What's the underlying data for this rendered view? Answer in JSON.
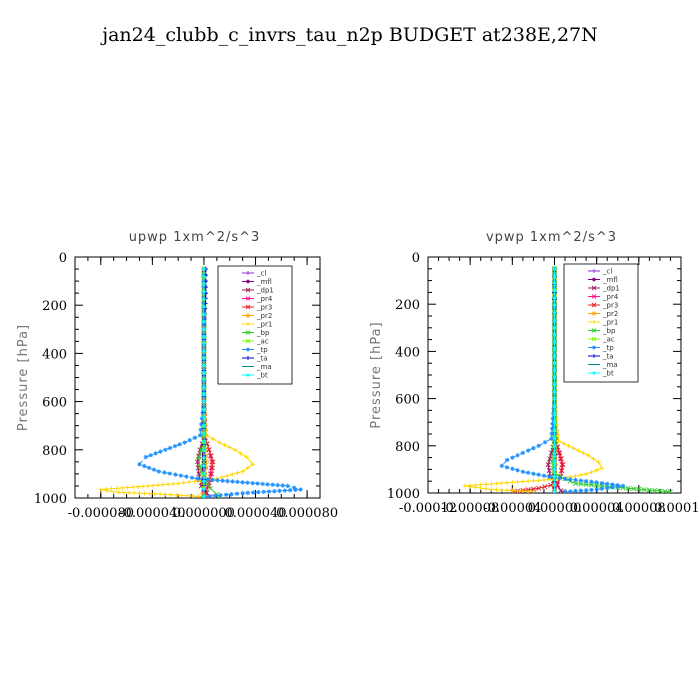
{
  "figure": {
    "title": "jan24_clubb_c_invrs_tau_n2p  BUDGET at238E,27N"
  },
  "legend_entries": [
    "_cl",
    "_mfl",
    "_dp1",
    "_pr4",
    "_pr3",
    "_pr2",
    "_pr1",
    "_bp",
    "_ac",
    "_tp",
    "_ta",
    "_ma",
    "_bt"
  ],
  "colors": {
    "_cl": "#8a2be2",
    "_mfl": "#800080",
    "_dp1": "#a0205a",
    "_pr4": "#ff1493",
    "_pr3": "#e02020",
    "_pr2": "#ffa500",
    "_pr1": "#ffd700",
    "_bp": "#32cd32",
    "_ac": "#7cfc00",
    "_tp": "#1e90ff",
    "_ta": "#0000cd",
    "_ma": "#008b8b",
    "_bt": "#00ffff"
  },
  "chart_data": [
    {
      "type": "line",
      "title": "upwp   1xm^2/s^3",
      "ylabel": "Pressure [hPa]",
      "xlabel": "",
      "xlim": [
        -0.0001,
        9e-05
      ],
      "ylim": [
        1000,
        0
      ],
      "xticks": [
        -8e-05,
        -4e-05,
        0.0,
        4e-05,
        8e-05
      ],
      "xtick_labels": [
        "-0.000080",
        "-0.000040",
        "0.000000",
        "0.000040",
        "0.000080"
      ],
      "yticks": [
        0,
        200,
        400,
        600,
        800,
        1000
      ],
      "ytick_labels": [
        "0",
        "200",
        "400",
        "600",
        "800",
        "1000"
      ],
      "series": [
        {
          "name": "_cl",
          "pressure": [
            50,
            150,
            250,
            350,
            450,
            550,
            650,
            750,
            850,
            950,
            990
          ],
          "values": [
            0,
            0,
            0,
            0,
            0,
            0,
            0,
            0,
            0,
            0,
            0
          ]
        },
        {
          "name": "_mfl",
          "pressure": [
            50,
            150,
            250,
            350,
            450,
            550,
            650,
            750,
            850,
            950,
            990
          ],
          "values": [
            0,
            0,
            0,
            0,
            0,
            0,
            0,
            0,
            0,
            0,
            0
          ]
        },
        {
          "name": "_dp1",
          "pressure": [
            50,
            300,
            600,
            750,
            800,
            850,
            900,
            950,
            980,
            995
          ],
          "values": [
            0,
            0,
            0,
            0,
            -3e-06,
            -5e-06,
            -4e-06,
            -2e-06,
            2e-06,
            5e-06
          ]
        },
        {
          "name": "_pr4",
          "pressure": [
            50,
            300,
            600,
            750,
            800,
            850,
            900,
            950,
            980,
            995
          ],
          "values": [
            0,
            0,
            0,
            1e-06,
            4e-06,
            6e-06,
            5e-06,
            3e-06,
            1e-06,
            0
          ]
        },
        {
          "name": "_pr3",
          "pressure": [
            50,
            300,
            600,
            750,
            800,
            850,
            900,
            950,
            980,
            995
          ],
          "values": [
            0,
            0,
            0,
            1e-06,
            4e-06,
            7e-06,
            6e-06,
            4e-06,
            1e-06,
            0
          ]
        },
        {
          "name": "_pr2",
          "pressure": [
            50,
            300,
            600,
            750,
            800,
            850,
            900,
            950,
            980,
            995
          ],
          "values": [
            0,
            0,
            0,
            0,
            1e-06,
            2e-06,
            1e-06,
            0,
            -1e-06,
            0
          ]
        },
        {
          "name": "_pr1",
          "pressure": [
            50,
            150,
            300,
            600,
            740,
            770,
            800,
            830,
            860,
            890,
            920,
            940,
            955,
            965,
            975,
            985,
            995
          ],
          "values": [
            0,
            0,
            0,
            0,
            2e-06,
            1.2e-05,
            2.4e-05,
            3.3e-05,
            3.8e-05,
            3e-05,
            1e-05,
            -2e-05,
            -5.5e-05,
            -8e-05,
            -7e-05,
            -3e-05,
            0
          ]
        },
        {
          "name": "_bp",
          "pressure": [
            50,
            300,
            600,
            780,
            800,
            830,
            870,
            920,
            960,
            985,
            995
          ],
          "values": [
            0,
            0,
            0,
            0,
            -2e-06,
            -4e-06,
            -3e-06,
            0,
            5e-06,
            1e-05,
            1.2e-05
          ]
        },
        {
          "name": "_ac",
          "pressure": [
            50,
            300,
            600,
            800,
            850,
            900,
            950,
            995
          ],
          "values": [
            0,
            0,
            0,
            0,
            0,
            0,
            0,
            0
          ]
        },
        {
          "name": "_tp",
          "pressure": [
            50,
            150,
            300,
            600,
            740,
            770,
            800,
            830,
            860,
            890,
            920,
            935,
            950,
            965,
            980,
            995
          ],
          "values": [
            0,
            0,
            0,
            0,
            -3e-06,
            -1.5e-05,
            -3e-05,
            -4.5e-05,
            -5e-05,
            -3.5e-05,
            -5e-06,
            3e-05,
            6.5e-05,
            7.5e-05,
            3e-05,
            0
          ]
        },
        {
          "name": "_ta",
          "pressure": [
            50,
            150,
            300,
            600,
            800,
            900,
            995
          ],
          "values": [
            1.5e-06,
            1.5e-06,
            0,
            0,
            0,
            0,
            0
          ]
        },
        {
          "name": "_ma",
          "pressure": [
            50,
            300,
            600,
            800,
            900,
            995
          ],
          "values": [
            0,
            0,
            0,
            0,
            0,
            0
          ]
        },
        {
          "name": "_bt",
          "pressure": [
            50,
            300,
            600,
            800,
            900,
            995
          ],
          "values": [
            0,
            0,
            0,
            0,
            0,
            0
          ]
        }
      ]
    },
    {
      "type": "line",
      "title": "vpwp   1xm^2/s^3",
      "ylabel": "Pressure [hPa]",
      "xlabel": "",
      "xlim": [
        -0.00012,
        0.00012
      ],
      "ylim": [
        1000,
        0
      ],
      "xticks": [
        -0.00012,
        -8e-05,
        -4e-05,
        0.0,
        4e-05,
        8e-05,
        0.00012
      ],
      "xtick_labels": [
        "-0.00012",
        "-0.00008",
        "-0.00004",
        "0.00000",
        "0.00004",
        "0.00008",
        "0.00012"
      ],
      "yticks": [
        0,
        200,
        400,
        600,
        800,
        1000
      ],
      "ytick_labels": [
        "0",
        "200",
        "400",
        "600",
        "800",
        "1000"
      ],
      "series": [
        {
          "name": "_cl",
          "pressure": [
            50,
            150,
            250,
            350,
            450,
            550,
            650,
            750,
            850,
            950,
            990
          ],
          "values": [
            0,
            0,
            0,
            0,
            0,
            0,
            0,
            0,
            0,
            0,
            0
          ]
        },
        {
          "name": "_mfl",
          "pressure": [
            50,
            150,
            250,
            350,
            450,
            550,
            650,
            750,
            850,
            950,
            990
          ],
          "values": [
            0,
            0,
            0,
            0,
            0,
            0,
            0,
            0,
            0,
            0,
            0
          ]
        },
        {
          "name": "_dp1",
          "pressure": [
            50,
            300,
            600,
            780,
            830,
            880,
            930,
            965,
            990,
            1000
          ],
          "values": [
            0,
            0,
            0,
            0,
            -3e-06,
            -6e-06,
            -4e-06,
            2e-06,
            6e-06,
            1e-05
          ]
        },
        {
          "name": "_pr4",
          "pressure": [
            50,
            300,
            600,
            780,
            830,
            880,
            930,
            965,
            990
          ],
          "values": [
            0,
            0,
            0,
            1e-06,
            4e-06,
            7e-06,
            6e-06,
            3e-06,
            0
          ]
        },
        {
          "name": "_pr3",
          "pressure": [
            50,
            300,
            600,
            780,
            830,
            880,
            930,
            960,
            980,
            995
          ],
          "values": [
            0,
            0,
            0,
            1e-06,
            5e-06,
            8e-06,
            6e-06,
            2e-06,
            -1.5e-05,
            -4e-05
          ]
        },
        {
          "name": "_pr2",
          "pressure": [
            50,
            300,
            600,
            800,
            880,
            940,
            990
          ],
          "values": [
            0,
            0,
            0,
            0,
            1e-06,
            0,
            0
          ]
        },
        {
          "name": "_pr1",
          "pressure": [
            50,
            150,
            300,
            600,
            780,
            810,
            840,
            870,
            895,
            920,
            940,
            955,
            970,
            985,
            995
          ],
          "values": [
            0,
            0,
            0,
            0,
            4e-06,
            1.8e-05,
            3.2e-05,
            4.2e-05,
            4.5e-05,
            3e-05,
            5e-06,
            -4e-05,
            -8.5e-05,
            -6e-05,
            -2e-05
          ]
        },
        {
          "name": "_bp",
          "pressure": [
            50,
            300,
            600,
            820,
            870,
            920,
            960,
            980,
            995
          ],
          "values": [
            0,
            0,
            0,
            0,
            -2e-06,
            0,
            2e-05,
            7e-05,
            0.00011
          ]
        },
        {
          "name": "_ac",
          "pressure": [
            50,
            300,
            600,
            800,
            880,
            940,
            995
          ],
          "values": [
            0,
            0,
            0,
            0,
            0,
            0,
            0
          ]
        },
        {
          "name": "_tp",
          "pressure": [
            50,
            150,
            300,
            600,
            770,
            800,
            830,
            860,
            885,
            910,
            935,
            955,
            970,
            985,
            995
          ],
          "values": [
            0,
            0,
            0,
            0,
            -3e-06,
            -1.5e-05,
            -3e-05,
            -4.5e-05,
            -5e-05,
            -3e-05,
            0,
            4e-05,
            6.5e-05,
            4e-05,
            1e-05
          ]
        },
        {
          "name": "_ta",
          "pressure": [
            50,
            150,
            300,
            600,
            800,
            900,
            995
          ],
          "values": [
            0,
            0,
            0,
            0,
            0,
            0,
            0
          ]
        },
        {
          "name": "_ma",
          "pressure": [
            50,
            300,
            600,
            800,
            900,
            995
          ],
          "values": [
            0,
            0,
            0,
            0,
            0,
            0
          ]
        },
        {
          "name": "_bt",
          "pressure": [
            50,
            300,
            600,
            800,
            900,
            995
          ],
          "values": [
            0,
            0,
            0,
            0,
            0,
            0
          ]
        }
      ]
    }
  ]
}
